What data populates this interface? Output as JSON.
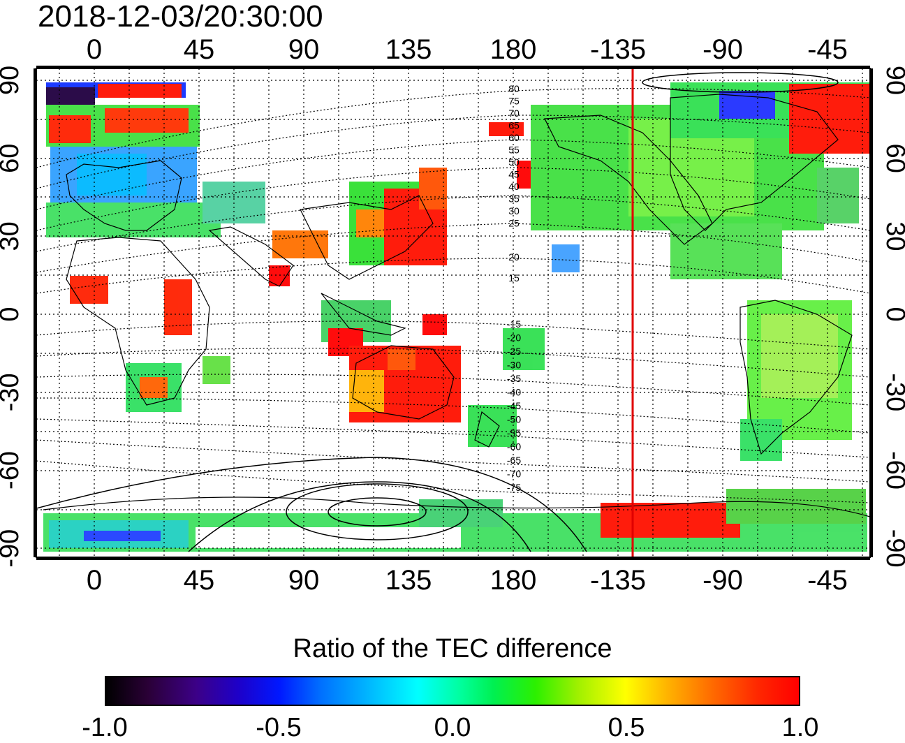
{
  "timestamp": "2018-12-03/20:30:00",
  "map": {
    "top_lon_labels": [
      "0",
      "45",
      "90",
      "135",
      "180",
      "-135",
      "-90",
      "-45"
    ],
    "bottom_lon_labels": [
      "0",
      "45",
      "90",
      "135",
      "180",
      "-135",
      "-90",
      "-45"
    ],
    "left_lat_labels": [
      "90",
      "60",
      "30",
      "0",
      "-30",
      "-60",
      "-90"
    ],
    "right_lat_labels": [
      "90",
      "60",
      "30",
      "0",
      "-30",
      "-60",
      "-90"
    ],
    "magnetic_lat_labels_north": [
      "80",
      "75",
      "70",
      "65",
      "60",
      "55",
      "50",
      "45",
      "40",
      "35",
      "30",
      "25",
      "20",
      "15"
    ],
    "magnetic_lat_labels_south": [
      "-15",
      "-20",
      "-25",
      "-30",
      "-35",
      "-40",
      "-45",
      "-50",
      "-55",
      "-60",
      "-65",
      "-70",
      "-75"
    ],
    "terminator_color": "#e00000",
    "terminator_lon": -128
  },
  "colorbar": {
    "title": "Ratio of the TEC difference",
    "tick_labels": [
      "-1.0",
      "-0.5",
      "0.0",
      "0.5",
      "1.0"
    ],
    "tick_values": [
      -1.0,
      -0.5,
      0.0,
      0.5,
      1.0
    ],
    "min": -1.0,
    "max": 1.0,
    "colors": [
      "#000000",
      "#3c0087",
      "#0018ff",
      "#00ffff",
      "#00f050",
      "#9ef000",
      "#ffff00",
      "#ff7000",
      "#ff0000"
    ]
  }
}
